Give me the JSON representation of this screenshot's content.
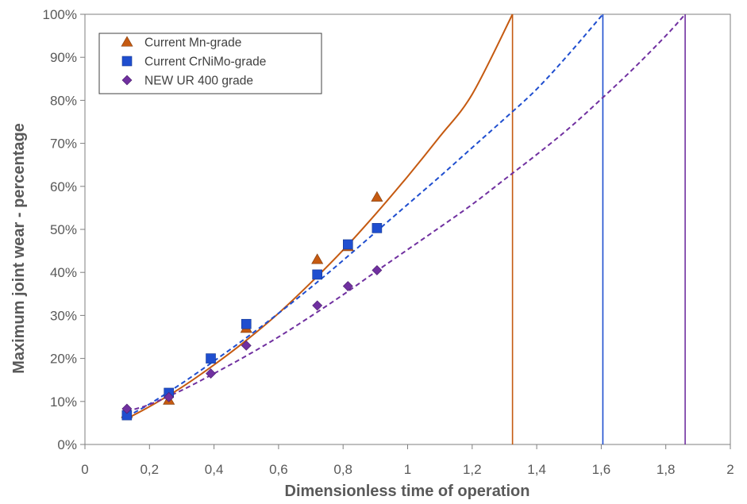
{
  "chart_data": {
    "type": "scatter",
    "title": "",
    "xlabel": "Dimensionless time of operation",
    "ylabel": "Maximum joint wear - percentage",
    "xlim": [
      0,
      2
    ],
    "ylim": [
      0,
      100
    ],
    "x_ticks": [
      0,
      0.2,
      0.4,
      0.6,
      0.8,
      1,
      1.2,
      1.4,
      1.6,
      1.8,
      2
    ],
    "x_tick_labels": [
      "0",
      "0,2",
      "0,4",
      "0,6",
      "0,8",
      "1",
      "1,2",
      "1,4",
      "1,6",
      "1,8",
      "2"
    ],
    "y_ticks": [
      0,
      10,
      20,
      30,
      40,
      50,
      60,
      70,
      80,
      90,
      100
    ],
    "y_tick_labels": [
      "0%",
      "10%",
      "20%",
      "30%",
      "40%",
      "50%",
      "60%",
      "70%",
      "80%",
      "90%",
      "100%"
    ],
    "legend_position": "top-left",
    "series": [
      {
        "name": "Current Mn-grade",
        "marker": "triangle",
        "color": "#c55a11",
        "trend_style": "solid",
        "x": [
          0.13,
          0.26,
          0.5,
          0.72,
          0.815,
          0.905
        ],
        "y": [
          7.2,
          10.3,
          27.0,
          43.0,
          46.0,
          57.5
        ],
        "trend_points": [
          [
            0.13,
            6.0
          ],
          [
            0.2,
            8.8
          ],
          [
            0.3,
            13.3
          ],
          [
            0.4,
            18.5
          ],
          [
            0.5,
            24.2
          ],
          [
            0.6,
            30.5
          ],
          [
            0.7,
            37.6
          ],
          [
            0.8,
            45.2
          ],
          [
            0.9,
            53.5
          ],
          [
            1.0,
            62.3
          ],
          [
            1.1,
            71.6
          ],
          [
            1.2,
            81.4
          ],
          [
            1.325,
            100.0
          ]
        ],
        "vertical_line_x": 1.325
      },
      {
        "name": "Current CrNiMo-grade",
        "marker": "square",
        "color": "#1f4ecf",
        "trend_style": "dashed",
        "x": [
          0.13,
          0.26,
          0.39,
          0.5,
          0.72,
          0.815,
          0.905
        ],
        "y": [
          6.8,
          12.0,
          20.0,
          28.0,
          39.5,
          46.5,
          50.3
        ],
        "trend_points": [
          [
            0.13,
            6.5
          ],
          [
            0.2,
            9.4
          ],
          [
            0.3,
            14.2
          ],
          [
            0.4,
            19.4
          ],
          [
            0.5,
            24.8
          ],
          [
            0.6,
            30.5
          ],
          [
            0.7,
            36.5
          ],
          [
            0.8,
            42.8
          ],
          [
            0.9,
            49.3
          ],
          [
            1.0,
            55.8
          ],
          [
            1.1,
            62.3
          ],
          [
            1.2,
            69.0
          ],
          [
            1.3,
            75.7
          ],
          [
            1.4,
            82.6
          ],
          [
            1.5,
            90.8
          ],
          [
            1.605,
            100.0
          ]
        ],
        "vertical_line_x": 1.605
      },
      {
        "name": "NEW UR 400 grade",
        "marker": "diamond",
        "color": "#7030a0",
        "trend_style": "dashed",
        "x": [
          0.13,
          0.26,
          0.39,
          0.5,
          0.72,
          0.815,
          0.905
        ],
        "y": [
          8.3,
          11.0,
          16.5,
          23.0,
          32.3,
          36.8,
          40.5
        ],
        "trend_points": [
          [
            0.13,
            7.7
          ],
          [
            0.2,
            9.3
          ],
          [
            0.3,
            12.6
          ],
          [
            0.4,
            16.5
          ],
          [
            0.5,
            20.6
          ],
          [
            0.6,
            25.0
          ],
          [
            0.7,
            29.8
          ],
          [
            0.8,
            34.8
          ],
          [
            0.9,
            40.1
          ],
          [
            1.0,
            45.3
          ],
          [
            1.1,
            50.5
          ],
          [
            1.2,
            55.8
          ],
          [
            1.3,
            61.6
          ],
          [
            1.4,
            67.4
          ],
          [
            1.5,
            73.5
          ],
          [
            1.6,
            80.3
          ],
          [
            1.7,
            87.4
          ],
          [
            1.8,
            95.0
          ],
          [
            1.86,
            100.0
          ]
        ],
        "vertical_line_x": 1.86
      }
    ]
  }
}
